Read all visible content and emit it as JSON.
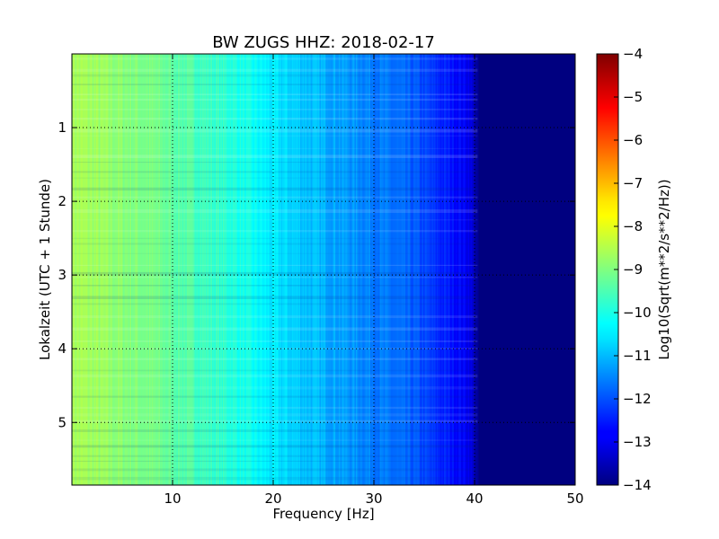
{
  "chart_data": {
    "type": "heatmap",
    "title": "BW ZUGS HHZ: 2018-02-17",
    "xlabel": "Frequency [Hz]",
    "ylabel": "Lokalzeit (UTC + 1 Stunde)",
    "xlim": [
      0,
      50
    ],
    "ylim": [
      5.85,
      0
    ],
    "y_inverted": true,
    "xticks": [
      10,
      20,
      30,
      40,
      50
    ],
    "yticks": [
      1,
      2,
      3,
      4,
      5
    ],
    "grid": true,
    "colormap": "jet",
    "colorbar": {
      "label": "Log10(Sqrt(m**2/s**2/Hz))",
      "range": [
        -14,
        -4
      ],
      "ticks": [
        -14,
        -13,
        -12,
        -11,
        -10,
        -9,
        -8,
        -7,
        -6,
        -5,
        -4
      ]
    },
    "frequency_profile": {
      "frequency_hz": [
        0,
        2,
        5,
        8,
        10,
        13,
        16,
        20,
        24,
        28,
        31,
        34,
        36,
        38,
        39.5,
        40.5,
        50
      ],
      "log10_value": [
        -8.6,
        -8.7,
        -8.9,
        -9.1,
        -9.3,
        -9.6,
        -9.9,
        -10.5,
        -10.9,
        -11.3,
        -11.6,
        -11.9,
        -12.3,
        -12.6,
        -12.9,
        -14,
        -14
      ]
    }
  }
}
